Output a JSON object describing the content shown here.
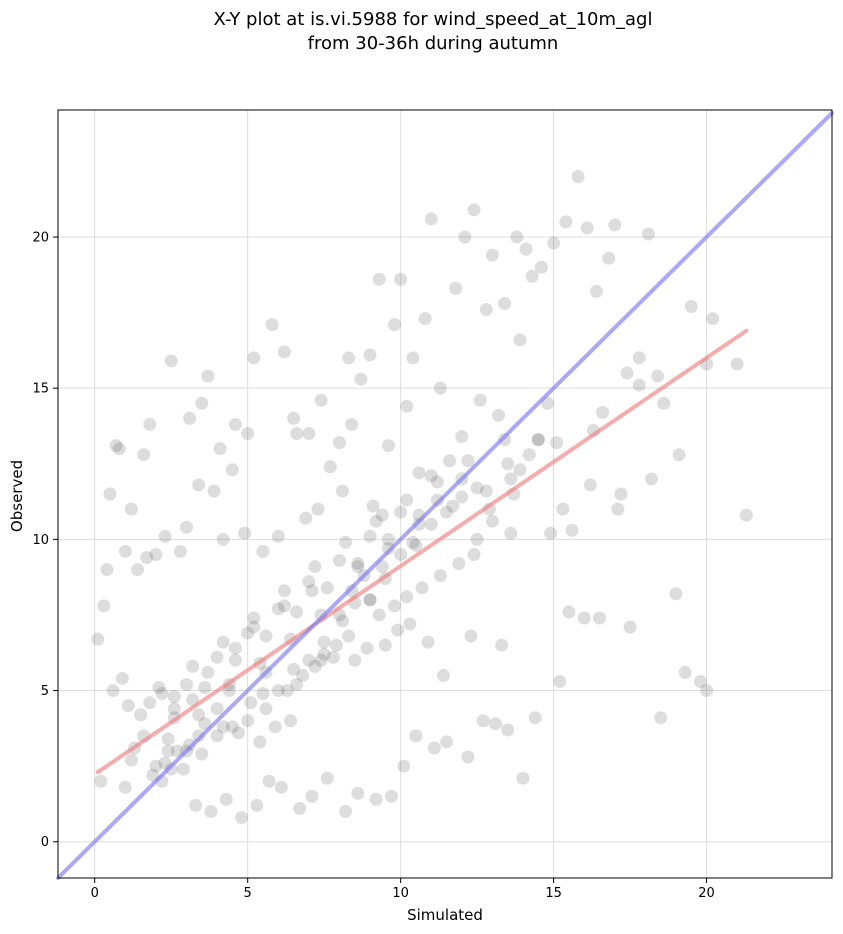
{
  "colors": {
    "background": "#ffffff",
    "points": "#555555",
    "fit_line": "#f08080",
    "identity_line": "#7b7bf0",
    "grid": "#dddddd"
  },
  "chart_data": {
    "type": "scatter",
    "title_line1": "X-Y plot at is.vi.5988 for wind_speed_at_10m_agl",
    "title_line2": "from 30-36h during autumn",
    "xlabel": "Simulated",
    "ylabel": "Observed",
    "xlim": [
      -1.2,
      24.1
    ],
    "ylim": [
      -1.2,
      24.2
    ],
    "xticks": [
      0,
      5,
      10,
      15,
      20
    ],
    "yticks": [
      0,
      5,
      10,
      15,
      20
    ],
    "grid": true,
    "series": [
      {
        "name": "observations",
        "kind": "points",
        "x": [
          0.1,
          0.4,
          0.7,
          1.2,
          1.6,
          1.8,
          2.5,
          3.1,
          3.5,
          3.7,
          4.1,
          4.6,
          4.9,
          5.2,
          5.8,
          6.2,
          6.5,
          7.0,
          7.4,
          8.0,
          8.3,
          8.7,
          9.0,
          9.3,
          9.8,
          10.0,
          10.4,
          10.8,
          11.0,
          11.3,
          11.8,
          12.1,
          12.4,
          12.8,
          13.0,
          13.4,
          13.8,
          14.1,
          14.3,
          14.6,
          15.0,
          15.4,
          15.8,
          16.1,
          16.4,
          16.8,
          17.0,
          17.4,
          17.8,
          18.1,
          18.6,
          19.0,
          19.3,
          19.8,
          20.0,
          21.0,
          21.3,
          20.2,
          19.5,
          18.4,
          17.2,
          16.3,
          15.6,
          15.2,
          14.9,
          14.5,
          13.9,
          13.6,
          13.2,
          12.9,
          12.6,
          12.0,
          11.6,
          11.2,
          10.6,
          10.2,
          9.6,
          9.4,
          9.1,
          8.8,
          8.4,
          8.1,
          7.7,
          7.3,
          6.9,
          6.6,
          6.0,
          5.5,
          5.0,
          4.5,
          4.2,
          3.9,
          3.4,
          3.0,
          2.8,
          2.3,
          2.0,
          1.7,
          1.4,
          1.0,
          0.8,
          0.5,
          0.3,
          1.9,
          2.4,
          2.9,
          3.3,
          3.8,
          4.3,
          4.8,
          5.3,
          5.7,
          6.1,
          6.7,
          7.1,
          7.6,
          8.2,
          8.6,
          9.2,
          9.7,
          10.1,
          10.5,
          11.1,
          11.5,
          12.2,
          12.7,
          13.1,
          13.5,
          14.0,
          14.4,
          1.1,
          1.5,
          2.1,
          2.6,
          3.2,
          3.6,
          4.0,
          4.4,
          5.1,
          5.6,
          6.3,
          6.8,
          7.2,
          7.8,
          8.5,
          8.9,
          9.5,
          9.9,
          10.3,
          10.9,
          11.4,
          12.3,
          13.3,
          15.5,
          16.5,
          17.5,
          18.5,
          0.6,
          0.9,
          1.3,
          2.2,
          2.7,
          3.4,
          4.7,
          5.4,
          5.9,
          6.4,
          7.5,
          7.9,
          8.1,
          9.0,
          9.8,
          10.7,
          11.9,
          12.5,
          13.7,
          14.2,
          16.0,
          17.1,
          18.2,
          19.1,
          20.0,
          14.8,
          13.4,
          12.0,
          11.0,
          10.0,
          9.0,
          8.0,
          7.0,
          6.0,
          5.0,
          4.0,
          3.0,
          2.0,
          1.0,
          0.2,
          2.3,
          3.1,
          4.2,
          5.6,
          6.6,
          7.4,
          8.3,
          9.3,
          10.2,
          11.3,
          12.4,
          13.6,
          15.3,
          16.2,
          1.8,
          2.6,
          3.7,
          4.6,
          5.2,
          6.2,
          7.1,
          8.6,
          9.6,
          10.6,
          11.7,
          12.8,
          13.9,
          15.1,
          16.6,
          17.8,
          2.5,
          3.5,
          4.5,
          5.5,
          6.5,
          7.5,
          8.5,
          9.5,
          10.5,
          11.5,
          12.5,
          13.5,
          14.5,
          3.0,
          4.0,
          5.0,
          6.0,
          7.0,
          8.0,
          9.0,
          10.0,
          11.0,
          12.0,
          13.0,
          2.2,
          3.2,
          4.2,
          5.2,
          6.2,
          7.2,
          8.2,
          9.2,
          10.2,
          11.2,
          12.2,
          1.6,
          2.6,
          3.6,
          4.6,
          5.6,
          6.6,
          7.6,
          8.6,
          9.6,
          10.6,
          1.2,
          2.4,
          3.4,
          4.4,
          5.4,
          6.4,
          7.4,
          8.4,
          9.4,
          10.4
        ],
        "y": [
          6.7,
          9.0,
          13.1,
          11.0,
          12.8,
          13.8,
          15.9,
          14.0,
          14.5,
          15.4,
          13.0,
          13.8,
          10.2,
          16.0,
          17.1,
          16.2,
          14.0,
          13.5,
          14.6,
          13.2,
          16.0,
          15.3,
          16.1,
          18.6,
          17.1,
          18.6,
          16.0,
          17.3,
          20.6,
          15.0,
          18.3,
          20.0,
          20.9,
          17.6,
          19.4,
          17.8,
          20.0,
          19.6,
          18.7,
          19.0,
          19.8,
          20.5,
          22.0,
          20.3,
          18.2,
          19.3,
          20.4,
          15.5,
          16.0,
          20.1,
          14.5,
          8.2,
          5.6,
          5.3,
          5.0,
          15.8,
          10.8,
          17.3,
          17.7,
          15.4,
          11.5,
          13.6,
          10.3,
          5.3,
          10.2,
          13.3,
          16.6,
          12.0,
          14.1,
          11.0,
          14.6,
          13.4,
          12.6,
          11.3,
          12.2,
          14.4,
          13.1,
          10.8,
          11.1,
          8.8,
          13.8,
          11.6,
          12.4,
          11.0,
          10.7,
          13.5,
          10.1,
          9.6,
          13.5,
          12.3,
          10.0,
          11.6,
          11.8,
          10.4,
          9.6,
          10.1,
          9.5,
          9.4,
          9.0,
          9.6,
          13.0,
          11.5,
          7.8,
          2.2,
          3.0,
          2.4,
          1.2,
          1.0,
          1.4,
          0.8,
          1.2,
          2.0,
          1.8,
          1.1,
          1.5,
          2.1,
          1.0,
          1.6,
          1.4,
          1.5,
          2.5,
          3.5,
          3.1,
          3.3,
          2.8,
          4.0,
          3.9,
          3.7,
          2.1,
          4.1,
          4.5,
          4.2,
          5.1,
          4.8,
          4.7,
          3.9,
          4.4,
          5.2,
          4.6,
          5.6,
          5.0,
          5.5,
          5.8,
          6.1,
          6.0,
          6.4,
          6.5,
          7.0,
          7.2,
          6.6,
          5.5,
          6.8,
          6.5,
          7.6,
          7.4,
          7.1,
          4.1,
          5.0,
          5.4,
          3.1,
          2.0,
          3.0,
          3.5,
          3.6,
          3.3,
          3.8,
          4.0,
          6.2,
          6.5,
          7.3,
          8.0,
          7.8,
          8.4,
          9.2,
          10.0,
          11.5,
          12.8,
          7.4,
          11.0,
          12.0,
          12.8,
          15.8,
          14.5,
          13.3,
          12.0,
          10.5,
          9.5,
          8.0,
          7.5,
          6.0,
          5.0,
          4.0,
          3.5,
          3.0,
          2.5,
          1.8,
          2.0,
          2.6,
          3.2,
          3.8,
          4.4,
          5.2,
          6.0,
          6.8,
          7.5,
          8.1,
          8.8,
          9.5,
          10.2,
          11.0,
          11.8,
          4.6,
          4.1,
          5.6,
          6.4,
          7.1,
          7.8,
          8.3,
          9.1,
          9.7,
          10.5,
          11.1,
          11.6,
          12.3,
          13.2,
          14.2,
          15.1,
          2.4,
          2.9,
          3.8,
          4.9,
          5.7,
          6.6,
          7.9,
          8.7,
          9.8,
          10.9,
          11.7,
          12.5,
          13.3,
          5.2,
          6.1,
          6.9,
          7.7,
          8.6,
          9.3,
          10.1,
          10.9,
          12.1,
          11.4,
          10.6,
          4.9,
          5.8,
          6.6,
          7.4,
          8.3,
          9.1,
          9.9,
          10.6,
          11.3,
          11.9,
          12.6,
          3.5,
          4.4,
          5.1,
          6.0,
          6.8,
          7.6,
          8.4,
          9.2,
          10.0,
          10.8,
          2.7,
          3.4,
          4.2,
          5.0,
          5.9,
          6.7,
          7.5,
          8.3,
          9.1,
          9.9
        ]
      },
      {
        "name": "linear fit",
        "kind": "line",
        "x": [
          0.1,
          21.3
        ],
        "y": [
          2.3,
          16.9
        ]
      },
      {
        "name": "1:1 line",
        "kind": "line",
        "x": [
          -1.2,
          24.1
        ],
        "y": [
          -1.2,
          24.1
        ]
      }
    ]
  }
}
